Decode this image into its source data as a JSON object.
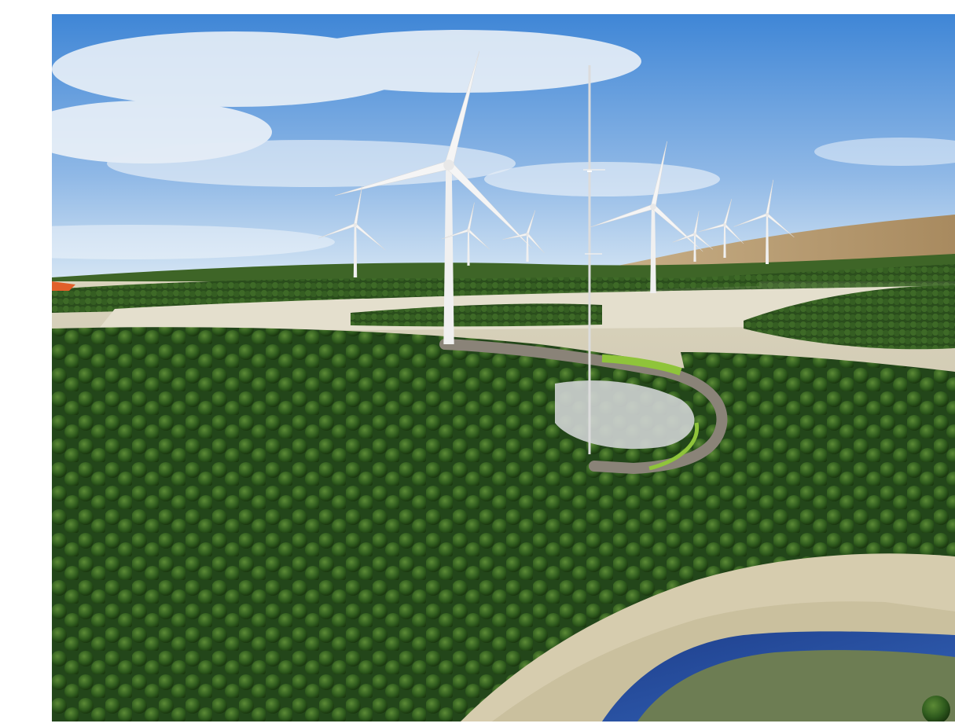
{
  "image": {
    "subject": "wind-farm-landscape-render",
    "colors": {
      "page_bg": "#ffffff",
      "sky_top": "#4f8fd8",
      "sky_horizon": "#cfe2f3",
      "cloud": "#f4f7fb",
      "forest_dark": "#1f3d14",
      "forest_mid": "#2f5a1f",
      "forest_light": "#4f7d2e",
      "ground": "#d8d2bc",
      "hill_brown": "#b89c72",
      "road": "#8a8378",
      "grass_edge": "#8fc43a",
      "water": "#2a4fa0",
      "turbine": "#f2f2f2",
      "mast": "#dcdcdc",
      "orange_marker": "#e0602a"
    },
    "turbines": [
      {
        "role": "main-turbine"
      },
      {
        "role": "left-turbine"
      },
      {
        "role": "center-turbine"
      },
      {
        "role": "center-turbine-2"
      },
      {
        "role": "right-turbine"
      },
      {
        "role": "far-right-turbine-1"
      },
      {
        "role": "far-right-turbine-2"
      },
      {
        "role": "far-right-turbine-3"
      }
    ]
  }
}
